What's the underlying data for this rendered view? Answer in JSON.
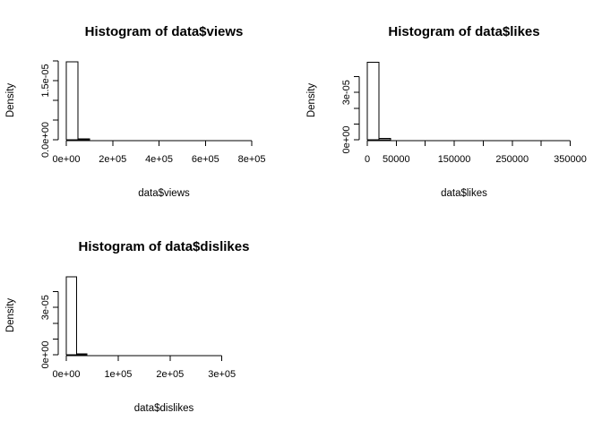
{
  "chart_data": [
    {
      "type": "bar",
      "title": "Histogram of data$views",
      "xlabel": "data$views",
      "ylabel": "Density",
      "xlim": [
        0,
        850000
      ],
      "x_ticks": [
        0,
        200000,
        400000,
        600000,
        800000
      ],
      "x_tick_labels": [
        "0e+00",
        "2e+05",
        "4e+05",
        "6e+05",
        "8e+05"
      ],
      "ylim": [
        0,
        2e-05
      ],
      "y_ticks": [
        0,
        5e-06,
        1e-05,
        1.5e-05,
        2e-05
      ],
      "y_tick_labels": [
        "0.0e+00",
        "",
        "",
        "1.5e-05",
        ""
      ],
      "bin_edges": [
        0,
        50000,
        100000,
        150000,
        200000,
        250000,
        300000,
        350000,
        400000,
        450000,
        500000,
        550000,
        600000,
        650000,
        700000,
        750000,
        800000,
        850000
      ],
      "values": [
        1.98e-05,
        2e-07,
        0,
        0,
        0,
        0,
        0,
        0,
        0,
        0,
        0,
        0,
        0,
        0,
        0,
        0,
        0
      ],
      "grid": false
    },
    {
      "type": "bar",
      "title": "Histogram of data$likes",
      "xlabel": "data$likes",
      "ylabel": "Density",
      "xlim": [
        0,
        340000
      ],
      "x_ticks": [
        0,
        50000,
        100000,
        150000,
        200000,
        250000,
        300000,
        350000
      ],
      "x_tick_labels": [
        "0",
        "50000",
        "",
        "150000",
        "",
        "250000",
        "",
        "350000"
      ],
      "ylim": [
        0,
        5e-05
      ],
      "y_ticks": [
        0,
        1e-05,
        2e-05,
        3e-05,
        4e-05
      ],
      "y_tick_labels": [
        "0e+00",
        "",
        "",
        "3e-05",
        ""
      ],
      "bin_edges": [
        0,
        20000,
        40000,
        60000,
        80000,
        100000,
        120000,
        140000,
        160000,
        180000,
        200000,
        220000,
        240000,
        260000,
        280000,
        300000,
        320000,
        340000
      ],
      "values": [
        4.92e-05,
        8e-07,
        0,
        0,
        0,
        0,
        0,
        0,
        0,
        0,
        0,
        0,
        0,
        0,
        0,
        0,
        0
      ],
      "grid": false
    },
    {
      "type": "bar",
      "title": "Histogram of data$dislikes",
      "xlabel": "data$dislikes",
      "ylabel": "Density",
      "xlim": [
        0,
        380000
      ],
      "x_ticks": [
        0,
        100000,
        200000,
        300000
      ],
      "x_tick_labels": [
        "0e+00",
        "1e+05",
        "2e+05",
        "3e+05"
      ],
      "ylim": [
        0,
        5e-05
      ],
      "y_ticks": [
        0,
        1e-05,
        2e-05,
        3e-05,
        4e-05
      ],
      "y_tick_labels": [
        "0e+00",
        "",
        "",
        "3e-05",
        ""
      ],
      "bin_edges": [
        0,
        20000,
        40000,
        60000,
        80000,
        100000,
        120000,
        140000,
        160000,
        180000,
        200000,
        220000,
        240000,
        260000,
        280000,
        300000,
        320000,
        340000,
        360000,
        380000
      ],
      "values": [
        4.94e-05,
        6e-07,
        0,
        0,
        0,
        0,
        0,
        0,
        0,
        0,
        0,
        0,
        0,
        0,
        0,
        0,
        0,
        0,
        0
      ],
      "grid": false
    }
  ]
}
